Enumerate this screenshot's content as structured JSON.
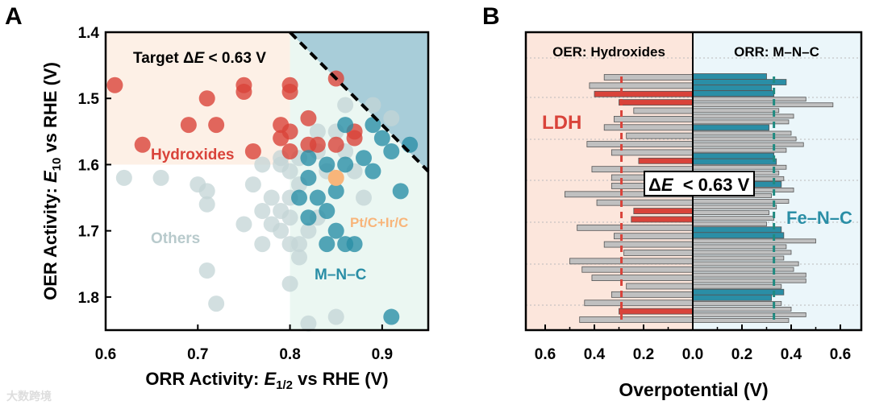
{
  "chart_data": [
    {
      "type": "scatter",
      "panel_label": "A",
      "xlabel": {
        "prefix": "ORR Activity: ",
        "var": "E",
        "sub": "1/2",
        "suffix": " vs RHE (V)"
      },
      "ylabel": {
        "prefix": "OER Activity: ",
        "var": "E",
        "sub": "10",
        "suffix": " vs RHE (V)"
      },
      "xlim": [
        0.6,
        0.95
      ],
      "ylim": [
        1.85,
        1.4
      ],
      "xticks": [
        "0.6",
        "0.7",
        "0.8",
        "0.9"
      ],
      "xtick_values": [
        0.6,
        0.7,
        0.8,
        0.9
      ],
      "yticks": [
        "1.4",
        "1.5",
        "1.6",
        "1.7",
        "1.8"
      ],
      "ytick_values": [
        1.4,
        1.5,
        1.6,
        1.7,
        1.8
      ],
      "target_label": {
        "prefix": "Target ",
        "delta": "Δ",
        "var": "E",
        "suffix": " < 0.63 V"
      },
      "target_line": [
        [
          0.8,
          1.4
        ],
        [
          0.95,
          1.61
        ]
      ],
      "colors": {
        "hydroxides": "#d9433a",
        "mnc": "#2a8ea6",
        "others": "#c3d4d6",
        "ref": "#f8b57a",
        "bg_hydroxides": "#fdf0e6",
        "bg_mnc": "#ebf7f2",
        "bg_target": "#a8cdd9"
      },
      "series": [
        {
          "name": "Hydroxides",
          "points": [
            [
              0.61,
              1.48
            ],
            [
              0.64,
              1.57
            ],
            [
              0.69,
              1.54
            ],
            [
              0.71,
              1.5
            ],
            [
              0.72,
              1.54
            ],
            [
              0.75,
              1.48
            ],
            [
              0.75,
              1.49
            ],
            [
              0.76,
              1.58
            ],
            [
              0.79,
              1.54
            ],
            [
              0.8,
              1.48
            ],
            [
              0.8,
              1.49
            ],
            [
              0.79,
              1.56
            ],
            [
              0.8,
              1.55
            ],
            [
              0.85,
              1.47
            ],
            [
              0.82,
              1.53
            ],
            [
              0.8,
              1.58
            ],
            [
              0.82,
              1.57
            ],
            [
              0.83,
              1.57
            ],
            [
              0.85,
              1.57
            ],
            [
              0.87,
              1.56
            ],
            [
              0.87,
              1.55
            ]
          ]
        },
        {
          "name": "Others",
          "points": [
            [
              0.62,
              1.62
            ],
            [
              0.66,
              1.62
            ],
            [
              0.7,
              1.63
            ],
            [
              0.71,
              1.64
            ],
            [
              0.71,
              1.66
            ],
            [
              0.76,
              1.63
            ],
            [
              0.79,
              1.6
            ],
            [
              0.77,
              1.67
            ],
            [
              0.75,
              1.69
            ],
            [
              0.78,
              1.69
            ],
            [
              0.79,
              1.7
            ],
            [
              0.8,
              1.72
            ],
            [
              0.77,
              1.72
            ],
            [
              0.81,
              1.74
            ],
            [
              0.79,
              1.67
            ],
            [
              0.71,
              1.76
            ],
            [
              0.72,
              1.81
            ],
            [
              0.8,
              1.78
            ],
            [
              0.82,
              1.84
            ],
            [
              0.85,
              1.83
            ],
            [
              0.81,
              1.59
            ],
            [
              0.83,
              1.55
            ],
            [
              0.86,
              1.51
            ],
            [
              0.89,
              1.51
            ],
            [
              0.91,
              1.53
            ],
            [
              0.79,
              1.59
            ],
            [
              0.8,
              1.61
            ],
            [
              0.81,
              1.63
            ],
            [
              0.77,
              1.6
            ],
            [
              0.83,
              1.68
            ],
            [
              0.82,
              1.7
            ],
            [
              0.88,
              1.65
            ],
            [
              0.84,
              1.61
            ],
            [
              0.87,
              1.61
            ],
            [
              0.8,
              1.65
            ],
            [
              0.78,
              1.65
            ],
            [
              0.85,
              1.55
            ],
            [
              0.86,
              1.58
            ],
            [
              0.83,
              1.58
            ],
            [
              0.8,
              1.68
            ],
            [
              0.81,
              1.72
            ]
          ]
        },
        {
          "name": "M–N–C",
          "points": [
            [
              0.93,
              1.57
            ],
            [
              0.91,
              1.58
            ],
            [
              0.89,
              1.54
            ],
            [
              0.86,
              1.54
            ],
            [
              0.9,
              1.56
            ],
            [
              0.88,
              1.59
            ],
            [
              0.89,
              1.61
            ],
            [
              0.86,
              1.6
            ],
            [
              0.84,
              1.6
            ],
            [
              0.82,
              1.62
            ],
            [
              0.85,
              1.64
            ],
            [
              0.83,
              1.65
            ],
            [
              0.92,
              1.64
            ],
            [
              0.84,
              1.67
            ],
            [
              0.82,
              1.68
            ],
            [
              0.85,
              1.7
            ],
            [
              0.84,
              1.72
            ],
            [
              0.86,
              1.72
            ],
            [
              0.87,
              1.72
            ],
            [
              0.91,
              1.83
            ],
            [
              0.82,
              1.59
            ],
            [
              0.81,
              1.65
            ]
          ]
        },
        {
          "name": "Pt/C+Ir/C",
          "points": [
            [
              0.85,
              1.62
            ]
          ]
        }
      ],
      "annotations": {
        "hydroxides": "Hydroxides",
        "others": "Others",
        "mnc": "M–N–C",
        "ref": "Pt/C+Ir/C"
      }
    },
    {
      "type": "bar",
      "orientation": "horizontal-diverging",
      "panel_label": "B",
      "xlabel": "Overpotential (V)",
      "xlim": [
        -0.68,
        0.68
      ],
      "xticks": [
        "0.6",
        "0.4",
        "0.2",
        "0.0",
        "0.2",
        "0.4",
        "0.6"
      ],
      "xtick_values": [
        -0.6,
        -0.4,
        -0.2,
        0,
        0.2,
        0.4,
        0.6
      ],
      "left_title": "OER: Hydroxides",
      "right_title": "ORR: M–N–C",
      "left_label": "LDH",
      "right_label": "Fe–N–C",
      "delta_box": {
        "delta": "Δ",
        "var": "E",
        "suffix": "  < 0.63 V"
      },
      "left_threshold": 0.29,
      "right_threshold": 0.33,
      "colors": {
        "ldh": "#d9433a",
        "fenc": "#2a8ea6",
        "other": "#c0c0c0",
        "bg_left": "#fce6dc",
        "bg_right": "#ebf6fa",
        "left_dash": "#d9433a",
        "right_dash": "#1f8a80"
      },
      "left_series": {
        "name": "OER: Hydroxides",
        "values": [
          0.36,
          0.42,
          0.4,
          0.3,
          0.24,
          0.32,
          0.36,
          0.27,
          0.43,
          0.33,
          0.22,
          0.41,
          0.33,
          0.33,
          0.52,
          0.39,
          0.24,
          0.25,
          0.47,
          0.32,
          0.36,
          0.28,
          0.5,
          0.45,
          0.41,
          0.27,
          0.33,
          0.44,
          0.3,
          0.46
        ],
        "highlight": [
          false,
          false,
          true,
          true,
          false,
          false,
          false,
          false,
          false,
          false,
          true,
          false,
          false,
          false,
          false,
          false,
          true,
          true,
          false,
          false,
          false,
          false,
          false,
          false,
          false,
          false,
          false,
          false,
          true,
          false
        ]
      },
      "right_series": {
        "name": "ORR: M–N–C",
        "values": [
          0.3,
          0.38,
          0.32,
          0.33,
          0.46,
          0.57,
          0.35,
          0.41,
          0.39,
          0.31,
          0.4,
          0.42,
          0.45,
          0.38,
          0.33,
          0.34,
          0.38,
          0.35,
          0.37,
          0.36,
          0.41,
          0.32,
          0.39,
          0.34,
          0.31,
          0.33,
          0.3,
          0.36,
          0.37,
          0.5,
          0.38,
          0.4,
          0.37,
          0.43,
          0.41,
          0.46,
          0.46,
          0.36,
          0.37,
          0.32,
          0.36,
          0.4,
          0.46,
          0.39
        ],
        "highlight": [
          true,
          true,
          true,
          true,
          false,
          false,
          false,
          false,
          false,
          true,
          false,
          false,
          false,
          false,
          true,
          true,
          false,
          false,
          false,
          true,
          false,
          false,
          false,
          false,
          false,
          false,
          false,
          true,
          true,
          false,
          false,
          false,
          false,
          false,
          false,
          false,
          false,
          false,
          true,
          true,
          false,
          false,
          false,
          false
        ]
      }
    }
  ],
  "watermark": "大数跨境"
}
